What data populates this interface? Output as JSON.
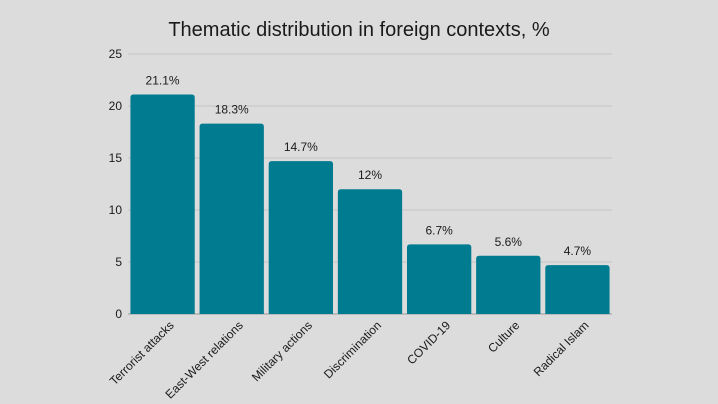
{
  "chart_data": {
    "type": "bar",
    "title": "Thematic distribution in foreign contexts, %",
    "xlabel": "",
    "ylabel": "",
    "categories": [
      "Terrorist attacks",
      "East-West relations",
      "Military actions",
      "Discrimination",
      "COVID-19",
      "Culture",
      "Radical Islam"
    ],
    "values": [
      21.1,
      18.3,
      14.7,
      12,
      6.7,
      5.6,
      4.7
    ],
    "data_labels": [
      "21.1%",
      "18.3%",
      "14.7%",
      "12%",
      "6.7%",
      "5.6%",
      "4.7%"
    ],
    "ylim": [
      0,
      25
    ],
    "yticks": [
      0,
      5,
      10,
      15,
      20,
      25
    ],
    "grid": true,
    "legend": "none",
    "bar_color": "#007b8f",
    "background_color": "#dcdcdc",
    "grid_color": "#c4c4c4"
  }
}
